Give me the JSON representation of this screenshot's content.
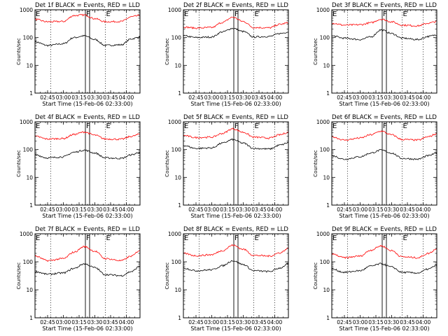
{
  "figure": {
    "panels": [
      {
        "title": "Det 1f BLACK = Events, RED = LLD"
      },
      {
        "title": "Det 2f BLACK = Events, RED = LLD"
      },
      {
        "title": "Det 3f BLACK = Events, RED = LLD"
      },
      {
        "title": "Det 4f BLACK = Events, RED = LLD"
      },
      {
        "title": "Det 5f BLACK = Events, RED = LLD"
      },
      {
        "title": "Det 6f BLACK = Events, RED = LLD"
      },
      {
        "title": "Det 7f BLACK = Events, RED = LLD"
      },
      {
        "title": "Det 8f BLACK = Events, RED = LLD"
      },
      {
        "title": "Det 9f BLACK = Events, RED = LLD"
      }
    ],
    "xlabel": "Start Time (15-Feb-06 02:33:00)",
    "ylabel": "Counts/sec",
    "x_tick_labels": [
      "02:45",
      "03:00",
      "03:15",
      "03:30",
      "03:45",
      "04:00"
    ],
    "y_tick_labels": [
      "1",
      "10",
      "100",
      "1000"
    ],
    "markers": [
      "E",
      "F",
      "E"
    ],
    "colors": {
      "events": "#000000",
      "lld": "#ff0000",
      "axes": "#000000"
    }
  },
  "chart_data": {
    "type": "line",
    "layout": "3x3 grid",
    "yscale": "log",
    "ylim": [
      1,
      1000
    ],
    "xlim": [
      "02:33",
      "04:13"
    ],
    "x_ticks": [
      "02:45",
      "03:00",
      "03:15",
      "03:30",
      "03:45",
      "04:00"
    ],
    "dotted_vertical_lines_at": [
      "02:48",
      "03:40",
      "04:00"
    ],
    "boxed_interval": [
      "03:21",
      "03:25"
    ],
    "panels": [
      {
        "detector": "1f",
        "series": [
          {
            "name": "Events",
            "color": "#000000",
            "x": [
              "02:33",
              "02:45",
              "03:00",
              "03:10",
              "03:20",
              "03:30",
              "03:40",
              "03:55",
              "04:05",
              "04:13"
            ],
            "values": [
              70,
              52,
              60,
              100,
              115,
              85,
              52,
              55,
              90,
              105
            ]
          },
          {
            "name": "LLD",
            "color": "#ff0000",
            "x": [
              "02:33",
              "02:45",
              "03:00",
              "03:10",
              "03:20",
              "03:30",
              "03:40",
              "03:55",
              "04:05",
              "04:13"
            ],
            "values": [
              450,
              370,
              380,
              620,
              650,
              480,
              370,
              380,
              560,
              620
            ]
          }
        ]
      },
      {
        "detector": "2f",
        "series": [
          {
            "name": "Events",
            "color": "#000000",
            "x": [
              "02:33",
              "02:45",
              "03:00",
              "03:10",
              "03:20",
              "03:30",
              "03:40",
              "03:55",
              "04:05",
              "04:13"
            ],
            "values": [
              115,
              100,
              105,
              160,
              215,
              165,
              105,
              110,
              140,
              160
            ]
          },
          {
            "name": "LLD",
            "color": "#ff0000",
            "x": [
              "02:33",
              "02:45",
              "03:00",
              "03:10",
              "03:20",
              "03:30",
              "03:40",
              "03:55",
              "04:05",
              "04:13"
            ],
            "values": [
              240,
              220,
              230,
              350,
              540,
              380,
              230,
              225,
              300,
              340
            ]
          }
        ]
      },
      {
        "detector": "3f",
        "series": [
          {
            "name": "Events",
            "color": "#000000",
            "x": [
              "02:33",
              "02:45",
              "03:00",
              "03:10",
              "03:20",
              "03:30",
              "03:40",
              "03:55",
              "04:05",
              "04:13"
            ],
            "values": [
              115,
              95,
              85,
              105,
              190,
              140,
              95,
              85,
              110,
              125
            ]
          },
          {
            "name": "LLD",
            "color": "#ff0000",
            "x": [
              "02:33",
              "02:45",
              "03:00",
              "03:10",
              "03:20",
              "03:30",
              "03:40",
              "03:55",
              "04:05",
              "04:13"
            ],
            "values": [
              330,
              280,
              290,
              340,
              460,
              370,
              280,
              265,
              330,
              380
            ]
          }
        ]
      },
      {
        "detector": "4f",
        "series": [
          {
            "name": "Events",
            "color": "#000000",
            "x": [
              "02:33",
              "02:45",
              "03:00",
              "03:10",
              "03:20",
              "03:30",
              "03:40",
              "03:55",
              "04:05",
              "04:13"
            ],
            "values": [
              65,
              50,
              55,
              80,
              95,
              75,
              50,
              48,
              65,
              80
            ]
          },
          {
            "name": "LLD",
            "color": "#ff0000",
            "x": [
              "02:33",
              "02:45",
              "03:00",
              "03:10",
              "03:20",
              "03:30",
              "03:40",
              "03:55",
              "04:05",
              "04:13"
            ],
            "values": [
              300,
              240,
              250,
              350,
              430,
              330,
              240,
              235,
              300,
              360
            ]
          }
        ]
      },
      {
        "detector": "5f",
        "series": [
          {
            "name": "Events",
            "color": "#000000",
            "x": [
              "02:33",
              "02:45",
              "03:00",
              "03:10",
              "03:20",
              "03:30",
              "03:40",
              "03:55",
              "04:05",
              "04:13"
            ],
            "values": [
              140,
              110,
              115,
              170,
              230,
              170,
              110,
              105,
              145,
              175
            ]
          },
          {
            "name": "LLD",
            "color": "#ff0000",
            "x": [
              "02:33",
              "02:45",
              "03:00",
              "03:10",
              "03:20",
              "03:30",
              "03:40",
              "03:55",
              "04:05",
              "04:13"
            ],
            "values": [
              320,
              270,
              280,
              380,
              560,
              420,
              280,
              260,
              340,
              420
            ]
          }
        ]
      },
      {
        "detector": "6f",
        "series": [
          {
            "name": "Events",
            "color": "#000000",
            "x": [
              "02:33",
              "02:45",
              "03:00",
              "03:10",
              "03:20",
              "03:30",
              "03:40",
              "03:55",
              "04:05",
              "04:13"
            ],
            "values": [
              60,
              45,
              55,
              75,
              95,
              75,
              48,
              45,
              60,
              75
            ]
          },
          {
            "name": "LLD",
            "color": "#ff0000",
            "x": [
              "02:33",
              "02:45",
              "03:00",
              "03:10",
              "03:20",
              "03:30",
              "03:40",
              "03:55",
              "04:05",
              "04:13"
            ],
            "values": [
              290,
              220,
              260,
              340,
              460,
              340,
              230,
              220,
              290,
              370
            ]
          }
        ]
      },
      {
        "detector": "7f",
        "series": [
          {
            "name": "Events",
            "color": "#000000",
            "x": [
              "02:33",
              "02:45",
              "03:00",
              "03:10",
              "03:20",
              "03:30",
              "03:40",
              "03:55",
              "04:05",
              "04:13"
            ],
            "values": [
              45,
              36,
              40,
              58,
              85,
              62,
              35,
              32,
              45,
              70
            ]
          },
          {
            "name": "LLD",
            "color": "#ff0000",
            "x": [
              "02:33",
              "02:45",
              "03:00",
              "03:10",
              "03:20",
              "03:30",
              "03:40",
              "03:55",
              "04:05",
              "04:13"
            ],
            "values": [
              160,
              110,
              130,
              220,
              350,
              240,
              130,
              110,
              160,
              260
            ]
          }
        ]
      },
      {
        "detector": "8f",
        "series": [
          {
            "name": "Events",
            "color": "#000000",
            "x": [
              "02:33",
              "02:45",
              "03:00",
              "03:10",
              "03:20",
              "03:30",
              "03:40",
              "03:55",
              "04:05",
              "04:13"
            ],
            "values": [
              60,
              48,
              52,
              72,
              110,
              80,
              48,
              45,
              60,
              85
            ]
          },
          {
            "name": "LLD",
            "color": "#ff0000",
            "x": [
              "02:33",
              "02:45",
              "03:00",
              "03:10",
              "03:20",
              "03:30",
              "03:40",
              "03:55",
              "04:05",
              "04:13"
            ],
            "values": [
              200,
              165,
              180,
              250,
              390,
              280,
              170,
              160,
              210,
              300
            ]
          }
        ]
      },
      {
        "detector": "9f",
        "series": [
          {
            "name": "Events",
            "color": "#000000",
            "x": [
              "02:33",
              "02:45",
              "03:00",
              "03:10",
              "03:20",
              "03:30",
              "03:40",
              "03:55",
              "04:05",
              "04:13"
            ],
            "values": [
              55,
              42,
              48,
              70,
              85,
              65,
              42,
              40,
              55,
              75
            ]
          },
          {
            "name": "LLD",
            "color": "#ff0000",
            "x": [
              "02:33",
              "02:45",
              "03:00",
              "03:10",
              "03:20",
              "03:30",
              "03:40",
              "03:55",
              "04:05",
              "04:13"
            ],
            "values": [
              190,
              140,
              160,
              260,
              370,
              250,
              150,
              140,
              200,
              290
            ]
          }
        ]
      }
    ]
  }
}
